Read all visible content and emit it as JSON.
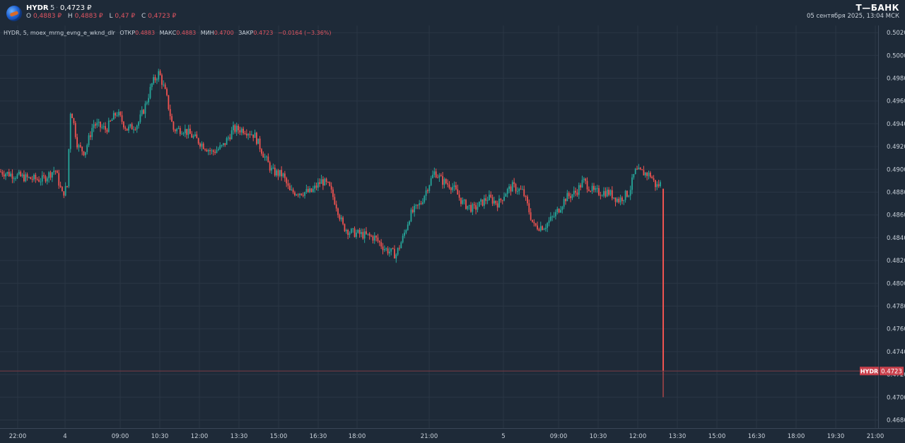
{
  "header": {
    "ticker": "HYDR",
    "timeframe": "5",
    "last_price": "0,4723 ₽",
    "ohlc": [
      {
        "key": "O",
        "value": "0,4883 ₽"
      },
      {
        "key": "H",
        "value": "0,4883 ₽"
      },
      {
        "key": "L",
        "value": "0,47 ₽"
      },
      {
        "key": "C",
        "value": "0,4723 ₽"
      }
    ],
    "brand": "Т—БАНК",
    "datetime": "05 сентября 2025, 13:04 МСК"
  },
  "study": {
    "prefix": "HYDR, 5, moex_mrng_evng_e_wknd_dlr",
    "items": [
      {
        "key": "ОТКР",
        "value": "0.4883"
      },
      {
        "key": "МАКС",
        "value": "0.4883"
      },
      {
        "key": "МИН",
        "value": "0.4700"
      },
      {
        "key": "ЗАКР",
        "value": "0.4723"
      }
    ],
    "change": "−0.0164 (−3.36%)"
  },
  "colors": {
    "background": "#1e2a38",
    "up": "#26a69a",
    "down": "#ef5350",
    "grid": "#2a3645",
    "price_label_bg": "#c9404c"
  },
  "chart_data": {
    "type": "candlestick",
    "ylim": [
      0.467,
      0.502
    ],
    "y_ticks": [
      "0.4680",
      "0.4700",
      "0.4720",
      "0.4740",
      "0.4760",
      "0.4780",
      "0.4800",
      "0.4820",
      "0.4840",
      "0.4860",
      "0.4880",
      "0.4900",
      "0.4920",
      "0.4940",
      "0.4960",
      "0.4980",
      "0.5000",
      "0.5020"
    ],
    "x_ticks": [
      "22:00",
      "4",
      "09:00",
      "10:30",
      "12:00",
      "13:30",
      "15:00",
      "16:30",
      "18:00",
      "21:00",
      "5",
      "09:00",
      "10:30",
      "12:00",
      "13:30",
      "15:00",
      "16:30",
      "18:00",
      "19:30",
      "21:00"
    ],
    "grid": true,
    "last_price": {
      "label": "HYDR",
      "value": "0.4723",
      "y": 0.4723
    },
    "keypoints": [
      [
        0,
        0.4898
      ],
      [
        20,
        0.4895
      ],
      [
        40,
        0.4892
      ],
      [
        60,
        0.4891
      ],
      [
        78,
        0.49
      ],
      [
        88,
        0.4878
      ],
      [
        95,
        0.4885
      ],
      [
        100,
        0.4955
      ],
      [
        110,
        0.492
      ],
      [
        120,
        0.4915
      ],
      [
        132,
        0.494
      ],
      [
        150,
        0.4935
      ],
      [
        165,
        0.495
      ],
      [
        180,
        0.4935
      ],
      [
        195,
        0.494
      ],
      [
        205,
        0.4955
      ],
      [
        215,
        0.4975
      ],
      [
        225,
        0.4985
      ],
      [
        235,
        0.4965
      ],
      [
        245,
        0.4935
      ],
      [
        260,
        0.4935
      ],
      [
        280,
        0.4925
      ],
      [
        300,
        0.4915
      ],
      [
        315,
        0.492
      ],
      [
        330,
        0.4935
      ],
      [
        345,
        0.4935
      ],
      [
        360,
        0.493
      ],
      [
        375,
        0.491
      ],
      [
        385,
        0.4898
      ],
      [
        400,
        0.4895
      ],
      [
        410,
        0.488
      ],
      [
        425,
        0.488
      ],
      [
        440,
        0.488
      ],
      [
        455,
        0.489
      ],
      [
        465,
        0.4885
      ],
      [
        475,
        0.487
      ],
      [
        485,
        0.485
      ],
      [
        495,
        0.4845
      ],
      [
        510,
        0.4843
      ],
      [
        530,
        0.484
      ],
      [
        545,
        0.483
      ],
      [
        560,
        0.4825
      ],
      [
        570,
        0.484
      ],
      [
        580,
        0.486
      ],
      [
        595,
        0.487
      ],
      [
        605,
        0.4885
      ],
      [
        615,
        0.4898
      ],
      [
        625,
        0.489
      ],
      [
        640,
        0.4885
      ],
      [
        655,
        0.487
      ],
      [
        670,
        0.4865
      ],
      [
        690,
        0.4875
      ],
      [
        705,
        0.487
      ],
      [
        715,
        0.488
      ],
      [
        725,
        0.4885
      ],
      [
        740,
        0.488
      ],
      [
        755,
        0.485
      ],
      [
        770,
        0.485
      ],
      [
        785,
        0.486
      ],
      [
        800,
        0.4875
      ],
      [
        815,
        0.488
      ],
      [
        825,
        0.489
      ],
      [
        840,
        0.488
      ],
      [
        860,
        0.488
      ],
      [
        875,
        0.4873
      ],
      [
        890,
        0.488
      ],
      [
        898,
        0.4898
      ],
      [
        910,
        0.4897
      ],
      [
        920,
        0.4895
      ],
      [
        928,
        0.4885
      ],
      [
        936,
        0.4888
      ]
    ],
    "final_candle": {
      "x": 938,
      "open": 0.4883,
      "high": 0.4883,
      "low": 0.47,
      "close": 0.4723
    }
  }
}
